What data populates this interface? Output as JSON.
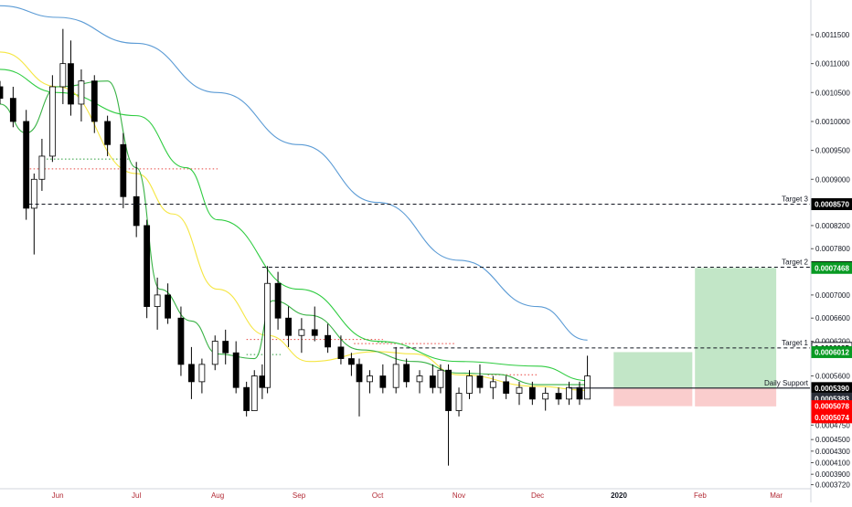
{
  "chart_data": {
    "type": "candlestick",
    "title": "",
    "xlabel": "",
    "ylabel": "",
    "ylim": [
      0.000365,
      0.00121
    ],
    "grid": false,
    "x_ticks": [
      {
        "label": "Jun",
        "date": "2019-06-01",
        "year": false
      },
      {
        "label": "Jul",
        "date": "2019-07-01",
        "year": false
      },
      {
        "label": "Aug",
        "date": "2019-08-01",
        "year": false
      },
      {
        "label": "Sep",
        "date": "2019-09-01",
        "year": false
      },
      {
        "label": "Oct",
        "date": "2019-10-01",
        "year": false
      },
      {
        "label": "Nov",
        "date": "2019-11-01",
        "year": false
      },
      {
        "label": "Dec",
        "date": "2019-12-01",
        "year": false
      },
      {
        "label": "2020",
        "date": "2020-01-01",
        "year": true
      },
      {
        "label": "Feb",
        "date": "2020-02-01",
        "year": false
      },
      {
        "label": "Mar",
        "date": "2020-03-01",
        "year": false
      }
    ],
    "y_ticks": [
      "0.0011500",
      "0.0011000",
      "0.0010500",
      "0.0010000",
      "0.0009500",
      "0.0009000",
      "0.0008200",
      "0.0007800",
      "0.0007000",
      "0.0006600",
      "0.0006200",
      "0.0005600",
      "0.0004750",
      "0.0004500",
      "0.0004300",
      "0.0004100",
      "0.0003900",
      "0.0003720"
    ],
    "price_markers": [
      {
        "label": "0.0008570",
        "value": 0.000857,
        "bg": "#000000",
        "fg": "#ffffff"
      },
      {
        "label": "0.0007480",
        "value": 0.000748,
        "bg": "#000000",
        "fg": "#ffffff"
      },
      {
        "label": "0.0007468",
        "value": 0.0007468,
        "bg": "#089a23",
        "fg": "#ffffff"
      },
      {
        "label": "0.0006085",
        "value": 0.0006085,
        "bg": "#ffffff",
        "fg": "#000000"
      },
      {
        "label": "0.0006012",
        "value": 0.0006012,
        "bg": "#089a23",
        "fg": "#ffffff"
      },
      {
        "label": "0.0005390",
        "value": 0.000539,
        "bg": "#000000",
        "fg": "#ffffff"
      },
      {
        "label": "0.0005383",
        "value": 0.0005383,
        "bg": "#2a2e39",
        "fg": "#ffffff",
        "shift": 11
      },
      {
        "label": "0.0005383",
        "value": 0.0005383,
        "bg": "#2a2e39",
        "fg": "#ffffff",
        "shift": 23
      },
      {
        "label": "0.0005078",
        "value": 0.0005078,
        "bg": "#ff0000",
        "fg": "#ffffff"
      },
      {
        "label": "0.0005074",
        "value": 0.0005074,
        "bg": "#ff0000",
        "fg": "#ffffff",
        "shift": 12
      }
    ],
    "horizontal_lines": [
      {
        "label": "Target 3",
        "value": 0.000857,
        "from": "2019-05-21",
        "style": "dashed"
      },
      {
        "label": "Target 2",
        "value": 0.000748,
        "from": "2019-08-18",
        "style": "dashed"
      },
      {
        "label": "Target 1",
        "value": 0.0006085,
        "from": "2019-10-07",
        "style": "dashed"
      },
      {
        "label": "Daily Support",
        "value": 0.000539,
        "from": "2019-12-13",
        "style": "solid"
      }
    ],
    "red_dotted_levels": [
      {
        "value": 0.000918,
        "from": "2019-05-20",
        "to": "2019-08-01"
      },
      {
        "value": 0.000623,
        "from": "2019-08-12",
        "to": "2019-10-03"
      },
      {
        "value": 0.000616,
        "from": "2019-09-22",
        "to": "2019-10-31"
      },
      {
        "value": 0.000562,
        "from": "2019-11-12",
        "to": "2019-12-01"
      }
    ],
    "green_dotted_levels": [
      {
        "value": 0.000935,
        "from": "2019-05-25",
        "to": "2019-06-28"
      },
      {
        "value": 0.000597,
        "from": "2019-08-12",
        "to": "2019-08-25"
      },
      {
        "value": 0.000618,
        "from": "2019-10-01",
        "to": "2019-10-08"
      }
    ],
    "zones": [
      {
        "kind": "profit",
        "from": "2019-12-30",
        "to": "2020-01-29",
        "top": 0.0006012,
        "bottom": 0.000539,
        "color": "#b7e2bd"
      },
      {
        "kind": "loss",
        "from": "2019-12-30",
        "to": "2020-01-29",
        "top": 0.000539,
        "bottom": 0.0005078,
        "color": "#f9c4c4"
      },
      {
        "kind": "profit",
        "from": "2020-01-30",
        "to": "2020-03-01",
        "top": 0.0007468,
        "bottom": 0.000539,
        "color": "#b7e2bd"
      },
      {
        "kind": "loss",
        "from": "2020-01-30",
        "to": "2020-03-01",
        "top": 0.000539,
        "bottom": 0.0005074,
        "color": "#f9c4c4"
      }
    ],
    "moving_averages": [
      {
        "color": "#5b9bd5",
        "points": [
          [
            "2019-05-10",
            0.0012
          ],
          [
            "2019-06-01",
            0.00118
          ],
          [
            "2019-07-01",
            0.001135
          ],
          [
            "2019-08-01",
            0.00105
          ],
          [
            "2019-09-01",
            0.00096
          ],
          [
            "2019-10-01",
            0.00086
          ],
          [
            "2019-11-01",
            0.00076
          ],
          [
            "2019-12-01",
            0.00068
          ],
          [
            "2019-12-20",
            0.000622
          ]
        ]
      },
      {
        "color": "#2ecc40",
        "points": [
          [
            "2019-05-10",
            0.00109
          ],
          [
            "2019-06-01",
            0.00105
          ],
          [
            "2019-07-01",
            0.00101
          ],
          [
            "2019-07-20",
            0.00092
          ],
          [
            "2019-08-01",
            0.00083
          ],
          [
            "2019-09-01",
            0.00071
          ],
          [
            "2019-10-01",
            0.00062
          ],
          [
            "2019-11-01",
            0.000585
          ],
          [
            "2019-12-01",
            0.000577
          ],
          [
            "2019-12-20",
            0.000552
          ]
        ]
      },
      {
        "color": "#f5e642",
        "points": [
          [
            "2019-05-10",
            0.00112
          ],
          [
            "2019-06-01",
            0.00106
          ],
          [
            "2019-07-01",
            0.00091
          ],
          [
            "2019-07-15",
            0.00084
          ],
          [
            "2019-08-01",
            0.00071
          ],
          [
            "2019-08-20",
            0.00063
          ],
          [
            "2019-09-05",
            0.000585
          ],
          [
            "2019-10-01",
            0.000602
          ],
          [
            "2019-10-15",
            0.000598
          ],
          [
            "2019-11-01",
            0.000562
          ],
          [
            "2019-12-01",
            0.000542
          ],
          [
            "2019-12-20",
            0.000535
          ]
        ]
      },
      {
        "color": "#38b244",
        "points": [
          [
            "2019-05-10",
            0.00103
          ],
          [
            "2019-05-20",
            0.00098
          ],
          [
            "2019-06-01",
            0.00106
          ],
          [
            "2019-06-20",
            0.00107
          ],
          [
            "2019-07-01",
            0.00092
          ],
          [
            "2019-07-10",
            0.00071
          ],
          [
            "2019-07-22",
            0.000655
          ],
          [
            "2019-08-01",
            0.000598
          ],
          [
            "2019-08-15",
            0.00059
          ],
          [
            "2019-08-22",
            0.00069
          ],
          [
            "2019-09-05",
            0.000665
          ],
          [
            "2019-09-25",
            0.000605
          ],
          [
            "2019-10-15",
            0.000585
          ],
          [
            "2019-11-01",
            0.000565
          ],
          [
            "2019-11-15",
            0.000563
          ],
          [
            "2019-12-01",
            0.000545
          ],
          [
            "2019-12-20",
            0.000545
          ]
        ]
      }
    ],
    "candles": [
      {
        "t": "2019-05-10",
        "o": 0.00106,
        "h": 0.00107,
        "l": 0.00103,
        "c": 0.00104
      },
      {
        "t": "2019-05-15",
        "o": 0.00104,
        "h": 0.00106,
        "l": 0.00099,
        "c": 0.001
      },
      {
        "t": "2019-05-20",
        "o": 0.001,
        "h": 0.00102,
        "l": 0.00083,
        "c": 0.00085
      },
      {
        "t": "2019-05-23",
        "o": 0.00085,
        "h": 0.00091,
        "l": 0.00077,
        "c": 0.0009
      },
      {
        "t": "2019-05-26",
        "o": 0.0009,
        "h": 0.00097,
        "l": 0.00088,
        "c": 0.00094
      },
      {
        "t": "2019-05-30",
        "o": 0.00094,
        "h": 0.00108,
        "l": 0.00093,
        "c": 0.00106
      },
      {
        "t": "2019-06-03",
        "o": 0.00106,
        "h": 0.00116,
        "l": 0.00103,
        "c": 0.0011
      },
      {
        "t": "2019-06-06",
        "o": 0.0011,
        "h": 0.00114,
        "l": 0.00101,
        "c": 0.00103
      },
      {
        "t": "2019-06-10",
        "o": 0.00103,
        "h": 0.00109,
        "l": 0.001,
        "c": 0.00107
      },
      {
        "t": "2019-06-15",
        "o": 0.00107,
        "h": 0.00108,
        "l": 0.00098,
        "c": 0.001
      },
      {
        "t": "2019-06-20",
        "o": 0.001,
        "h": 0.00101,
        "l": 0.00094,
        "c": 0.00096
      },
      {
        "t": "2019-06-26",
        "o": 0.00096,
        "h": 0.00098,
        "l": 0.00085,
        "c": 0.00087
      },
      {
        "t": "2019-07-01",
        "o": 0.00087,
        "h": 0.00093,
        "l": 0.0008,
        "c": 0.00082
      },
      {
        "t": "2019-07-05",
        "o": 0.00082,
        "h": 0.00083,
        "l": 0.00066,
        "c": 0.00068
      },
      {
        "t": "2019-07-09",
        "o": 0.00068,
        "h": 0.00073,
        "l": 0.00064,
        "c": 0.0007
      },
      {
        "t": "2019-07-13",
        "o": 0.0007,
        "h": 0.00072,
        "l": 0.00065,
        "c": 0.00066
      },
      {
        "t": "2019-07-18",
        "o": 0.00066,
        "h": 0.00068,
        "l": 0.00056,
        "c": 0.00058
      },
      {
        "t": "2019-07-22",
        "o": 0.00058,
        "h": 0.00061,
        "l": 0.00052,
        "c": 0.00055
      },
      {
        "t": "2019-07-26",
        "o": 0.00055,
        "h": 0.00059,
        "l": 0.00053,
        "c": 0.00058
      },
      {
        "t": "2019-07-31",
        "o": 0.00058,
        "h": 0.00063,
        "l": 0.00057,
        "c": 0.00062
      },
      {
        "t": "2019-08-04",
        "o": 0.00062,
        "h": 0.00064,
        "l": 0.00058,
        "c": 0.0006
      },
      {
        "t": "2019-08-08",
        "o": 0.0006,
        "h": 0.00062,
        "l": 0.00053,
        "c": 0.00054
      },
      {
        "t": "2019-08-12",
        "o": 0.00054,
        "h": 0.00055,
        "l": 0.00049,
        "c": 0.0005
      },
      {
        "t": "2019-08-15",
        "o": 0.0005,
        "h": 0.00057,
        "l": 0.0005,
        "c": 0.00056
      },
      {
        "t": "2019-08-18",
        "o": 0.00056,
        "h": 0.00058,
        "l": 0.00052,
        "c": 0.00054
      },
      {
        "t": "2019-08-20",
        "o": 0.00054,
        "h": 0.00075,
        "l": 0.00053,
        "c": 0.00072
      },
      {
        "t": "2019-08-24",
        "o": 0.00072,
        "h": 0.00074,
        "l": 0.00064,
        "c": 0.00066
      },
      {
        "t": "2019-08-28",
        "o": 0.00066,
        "h": 0.00068,
        "l": 0.00061,
        "c": 0.00063
      },
      {
        "t": "2019-09-02",
        "o": 0.00063,
        "h": 0.00066,
        "l": 0.0006,
        "c": 0.00064
      },
      {
        "t": "2019-09-07",
        "o": 0.00064,
        "h": 0.00068,
        "l": 0.00062,
        "c": 0.00063
      },
      {
        "t": "2019-09-12",
        "o": 0.00063,
        "h": 0.00065,
        "l": 0.0006,
        "c": 0.00061
      },
      {
        "t": "2019-09-17",
        "o": 0.00061,
        "h": 0.00063,
        "l": 0.00058,
        "c": 0.00059
      },
      {
        "t": "2019-09-21",
        "o": 0.00059,
        "h": 0.0006,
        "l": 0.00056,
        "c": 0.00058
      },
      {
        "t": "2019-09-24",
        "o": 0.00058,
        "h": 0.00059,
        "l": 0.00049,
        "c": 0.00055
      },
      {
        "t": "2019-09-28",
        "o": 0.00055,
        "h": 0.00057,
        "l": 0.00053,
        "c": 0.00056
      },
      {
        "t": "2019-10-03",
        "o": 0.00056,
        "h": 0.00058,
        "l": 0.00053,
        "c": 0.00054
      },
      {
        "t": "2019-10-08",
        "o": 0.00054,
        "h": 0.00061,
        "l": 0.00053,
        "c": 0.00058
      },
      {
        "t": "2019-10-12",
        "o": 0.00058,
        "h": 0.00059,
        "l": 0.00054,
        "c": 0.00055
      },
      {
        "t": "2019-10-17",
        "o": 0.00055,
        "h": 0.00057,
        "l": 0.00053,
        "c": 0.00056
      },
      {
        "t": "2019-10-22",
        "o": 0.00056,
        "h": 0.00058,
        "l": 0.00053,
        "c": 0.00054
      },
      {
        "t": "2019-10-25",
        "o": 0.00054,
        "h": 0.00058,
        "l": 0.00053,
        "c": 0.00057
      },
      {
        "t": "2019-10-28",
        "o": 0.00057,
        "h": 0.00058,
        "l": 0.000405,
        "c": 0.0005
      },
      {
        "t": "2019-11-01",
        "o": 0.0005,
        "h": 0.00054,
        "l": 0.00049,
        "c": 0.00053
      },
      {
        "t": "2019-11-05",
        "o": 0.00053,
        "h": 0.00057,
        "l": 0.00052,
        "c": 0.00056
      },
      {
        "t": "2019-11-09",
        "o": 0.00056,
        "h": 0.00058,
        "l": 0.00053,
        "c": 0.00054
      },
      {
        "t": "2019-11-14",
        "o": 0.00054,
        "h": 0.00056,
        "l": 0.00052,
        "c": 0.00055
      },
      {
        "t": "2019-11-19",
        "o": 0.00055,
        "h": 0.00056,
        "l": 0.00052,
        "c": 0.00053
      },
      {
        "t": "2019-11-24",
        "o": 0.00053,
        "h": 0.00055,
        "l": 0.00051,
        "c": 0.00054
      },
      {
        "t": "2019-11-29",
        "o": 0.00054,
        "h": 0.00055,
        "l": 0.00051,
        "c": 0.00052
      },
      {
        "t": "2019-12-04",
        "o": 0.00052,
        "h": 0.00054,
        "l": 0.0005,
        "c": 0.00053
      },
      {
        "t": "2019-12-09",
        "o": 0.00053,
        "h": 0.00054,
        "l": 0.00051,
        "c": 0.00052
      },
      {
        "t": "2019-12-13",
        "o": 0.00052,
        "h": 0.00055,
        "l": 0.00051,
        "c": 0.00054
      },
      {
        "t": "2019-12-17",
        "o": 0.00054,
        "h": 0.00055,
        "l": 0.00051,
        "c": 0.00052
      },
      {
        "t": "2019-12-20",
        "o": 0.00052,
        "h": 0.000595,
        "l": 0.00052,
        "c": 0.00056
      }
    ]
  }
}
